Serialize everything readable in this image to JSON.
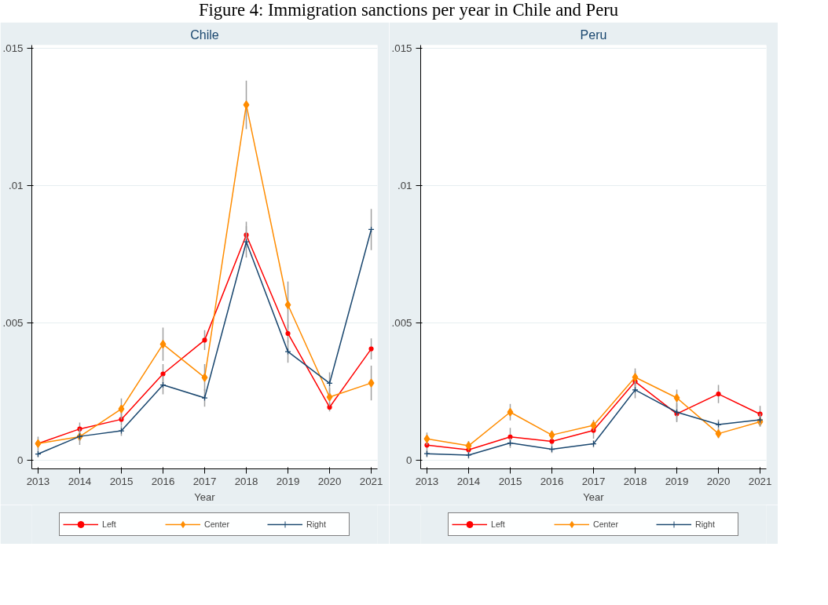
{
  "chart_data": [
    {
      "type": "line",
      "title": "Chile",
      "xlabel": "Year",
      "annotations": [
        "Figure 4: Immigration sanctions per year in Chile and Peru"
      ],
      "x": [
        2013,
        2014,
        2015,
        2016,
        2017,
        2018,
        2019,
        2020,
        2021
      ],
      "xlim": [
        2012.85,
        2021.15
      ],
      "xticks": [
        2013,
        2014,
        2015,
        2016,
        2017,
        2018,
        2019,
        2020,
        2021
      ],
      "ylim": [
        -0.0003,
        0.0151
      ],
      "yticks": [
        {
          "value": 0,
          "label": "0"
        },
        {
          "value": 0.005,
          "label": ".005"
        },
        {
          "value": 0.01,
          "label": ".01"
        },
        {
          "value": 0.015,
          "label": ".015"
        }
      ],
      "grid": "y",
      "legend": "bottom",
      "series": [
        {
          "name": "Left",
          "color": "#ff0000",
          "marker": "circle",
          "values": [
            0.00062,
            0.00115,
            0.0015,
            0.00315,
            0.00438,
            0.0082,
            0.00462,
            0.00194,
            0.00406
          ],
          "errors": [
            0.00013,
            0.00023,
            0.00023,
            0.00036,
            0.00036,
            0.00048,
            0.00033,
            0.00015,
            0.00038
          ]
        },
        {
          "name": "Center",
          "color": "#ff8c00",
          "marker": "diamond",
          "values": [
            0.00062,
            0.00087,
            0.00188,
            0.00423,
            0.00302,
            0.01293,
            0.00566,
            0.00231,
            0.00282
          ],
          "errors": [
            0.00025,
            0.0003,
            0.00038,
            0.0006,
            0.00049,
            0.00088,
            0.00085,
            0.00033,
            0.00063
          ]
        },
        {
          "name": "Right",
          "color": "#1a476f",
          "marker": "cross",
          "values": [
            0.00024,
            0.00088,
            0.00108,
            0.00275,
            0.00228,
            0.00795,
            0.00396,
            0.00281,
            0.0084
          ],
          "errors": [
            0.00013,
            0.00017,
            0.00018,
            0.00034,
            0.00032,
            0.00057,
            0.0004,
            0.0004,
            0.00075
          ]
        }
      ]
    },
    {
      "type": "line",
      "title": "Peru",
      "xlabel": "Year",
      "x": [
        2013,
        2014,
        2015,
        2016,
        2017,
        2018,
        2019,
        2020,
        2021
      ],
      "xlim": [
        2012.85,
        2021.15
      ],
      "xticks": [
        2013,
        2014,
        2015,
        2016,
        2017,
        2018,
        2019,
        2020,
        2021
      ],
      "ylim": [
        -0.0003,
        0.0151
      ],
      "yticks": [
        {
          "value": 0,
          "label": "0"
        },
        {
          "value": 0.005,
          "label": ".005"
        },
        {
          "value": 0.01,
          "label": ".01"
        },
        {
          "value": 0.015,
          "label": ".015"
        }
      ],
      "grid": "y",
      "legend": "bottom",
      "series": [
        {
          "name": "Left",
          "color": "#ff0000",
          "marker": "circle",
          "values": [
            0.00056,
            0.00039,
            0.00086,
            0.0007,
            0.0011,
            0.00287,
            0.0017,
            0.00242,
            0.00169
          ],
          "errors": [
            0.0003,
            0.00015,
            0.00033,
            0.00017,
            0.0003,
            0.00038,
            0.0003,
            0.00033,
            0.0003
          ]
        },
        {
          "name": "Center",
          "color": "#ff8c00",
          "marker": "diamond",
          "values": [
            0.00079,
            0.00054,
            0.00176,
            0.00093,
            0.00128,
            0.00303,
            0.00228,
            0.00098,
            0.00141
          ],
          "errors": [
            0.00023,
            0.00017,
            0.0003,
            0.00017,
            0.0002,
            0.00032,
            0.0003,
            0.00017,
            0.00018
          ]
        },
        {
          "name": "Right",
          "color": "#1a476f",
          "marker": "cross",
          "values": [
            0.00025,
            0.0002,
            0.00064,
            0.00041,
            0.00061,
            0.00257,
            0.00176,
            0.00131,
            0.00148
          ],
          "errors": [
            0.00013,
            0.00013,
            0.00018,
            0.00013,
            0.00013,
            0.0003,
            0.00032,
            0.00018,
            0.00023
          ]
        }
      ]
    }
  ]
}
